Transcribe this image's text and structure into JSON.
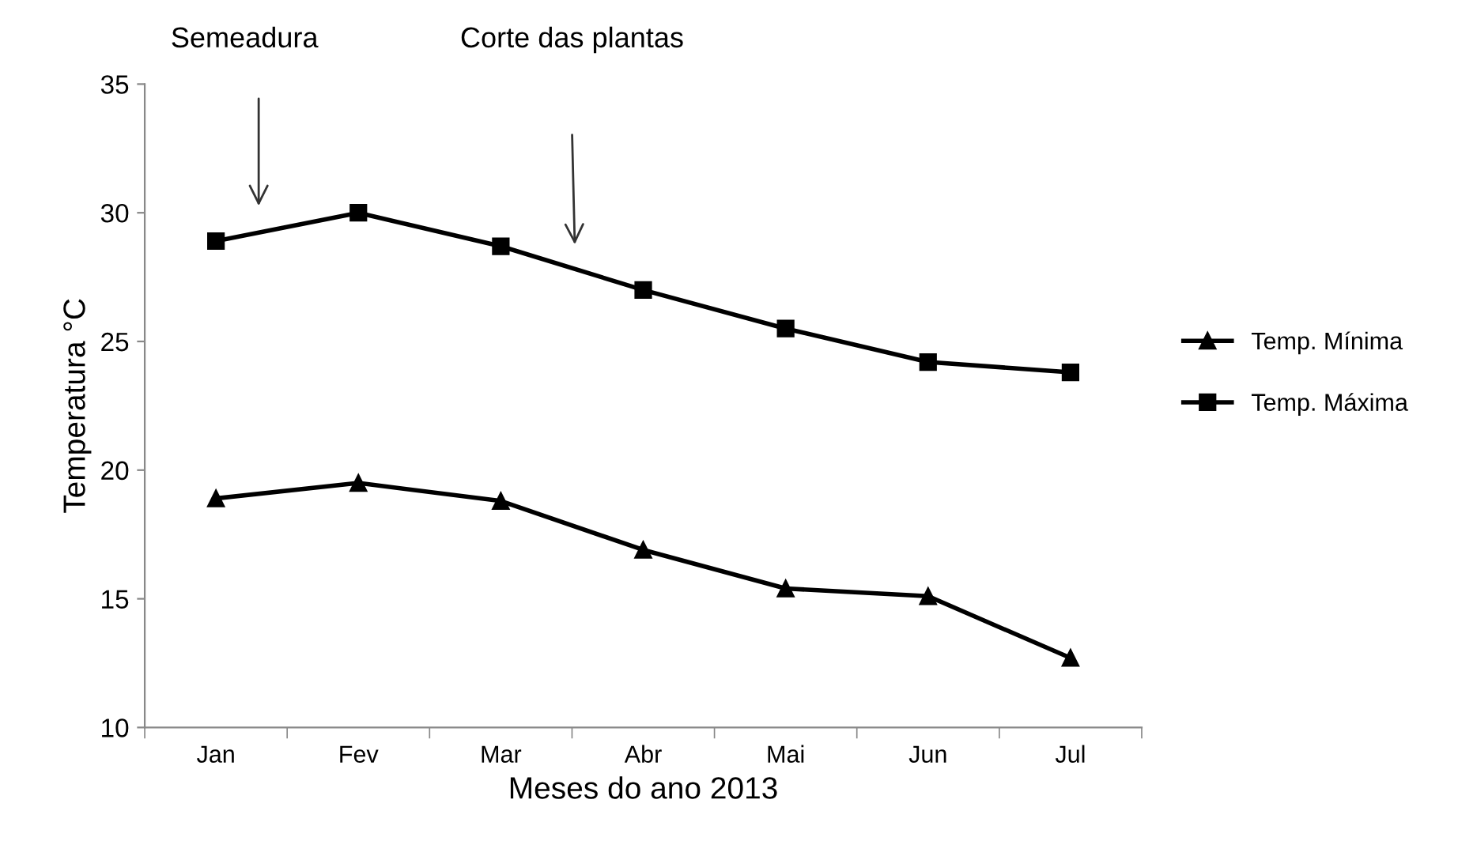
{
  "chart_data": {
    "type": "line",
    "xlabel": "Meses do ano 2013",
    "ylabel": "Temperatura °C",
    "categories": [
      "Jan",
      "Fev",
      "Mar",
      "Abr",
      "Mai",
      "Jun",
      "Jul"
    ],
    "series": [
      {
        "name": "Temp. Mínima",
        "color": "#000000",
        "marker": "triangle",
        "values": [
          18.9,
          19.5,
          18.8,
          16.9,
          15.4,
          15.1,
          12.7
        ]
      },
      {
        "name": "Temp. Máxima",
        "color": "#000000",
        "marker": "square",
        "values": [
          28.9,
          30.0,
          28.7,
          27.0,
          25.5,
          24.2,
          23.8
        ]
      }
    ],
    "ylim": [
      10,
      35
    ],
    "yticks": [
      10,
      15,
      20,
      25,
      30,
      35
    ],
    "annotations": [
      "Semeadura",
      "Corte das plantas"
    ],
    "grid": false,
    "legend": "right",
    "line_style": "solid"
  }
}
